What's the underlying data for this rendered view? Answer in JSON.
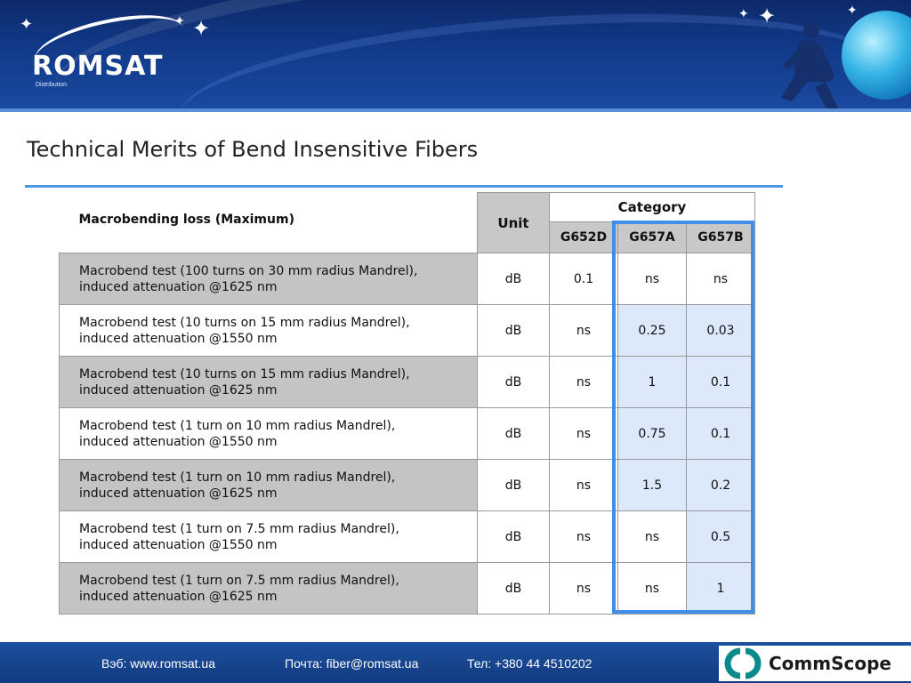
{
  "header": {
    "logo": "ROMSAT",
    "logo_sub": "Distribution"
  },
  "title": "Technical Merits of Bend Insensitive Fibers",
  "table": {
    "header_main": "Macrobending loss (Maximum)",
    "header_unit": "Unit",
    "header_category": "Category",
    "categories": [
      "G652D",
      "G657A",
      "G657B"
    ],
    "rows": [
      {
        "line1": "Macrobend test (100 turns on 30 mm radius Mandrel),",
        "line2": "induced attenuation @1625 nm",
        "unit": "dB",
        "values": [
          "0.1",
          "ns",
          "ns"
        ]
      },
      {
        "line1": "Macrobend test (10 turns on 15 mm radius Mandrel),",
        "line2": "induced attenuation @1550 nm",
        "unit": "dB",
        "values": [
          "ns",
          "0.25",
          "0.03"
        ]
      },
      {
        "line1": "Macrobend test (10 turns on 15 mm radius Mandrel),",
        "line2": "induced attenuation @1625 nm",
        "unit": "dB",
        "values": [
          "ns",
          "1",
          "0.1"
        ]
      },
      {
        "line1": "Macrobend test (1 turn on 10 mm radius Mandrel),",
        "line2": "induced attenuation @1550 nm",
        "unit": "dB",
        "values": [
          "ns",
          "0.75",
          "0.1"
        ]
      },
      {
        "line1": "Macrobend test (1 turn on 10 mm radius Mandrel),",
        "line2": "induced attenuation @1625 nm",
        "unit": "dB",
        "values": [
          "ns",
          "1.5",
          "0.2"
        ]
      },
      {
        "line1": "Macrobend test (1 turn on 7.5 mm radius Mandrel),",
        "line2": "induced attenuation @1550 nm",
        "unit": "dB",
        "values": [
          "ns",
          "ns",
          "0.5"
        ]
      },
      {
        "line1": "Macrobend test (1 turn on 7.5 mm radius Mandrel),",
        "line2": "induced attenuation @1625 nm",
        "unit": "dB",
        "values": [
          "ns",
          "ns",
          "1"
        ]
      }
    ]
  },
  "footer": {
    "web": "Вэб: www.romsat.ua",
    "mail": "Почта: fiber@romsat.ua",
    "phone": "Тел: +380 44 4510202",
    "brand": "CommScope"
  },
  "colors": {
    "highlight_border": "#3f8fe8",
    "highlight_fill": "#dbe9fa",
    "header_blue": "#123a8a"
  }
}
